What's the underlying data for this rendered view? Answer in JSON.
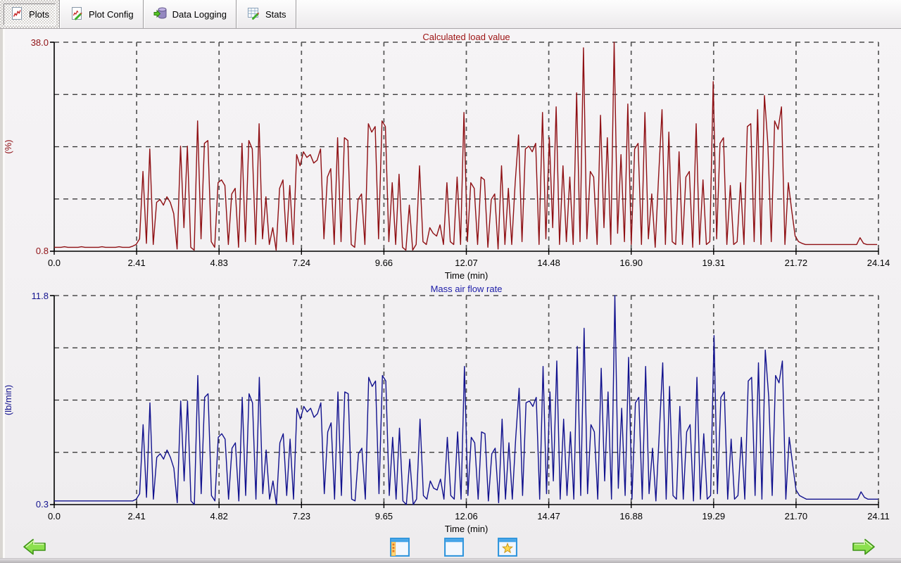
{
  "toolbar": {
    "tabs": [
      {
        "label": "Plots",
        "icon": "line-chart-page-icon",
        "active": true
      },
      {
        "label": "Plot Config",
        "icon": "chart-edit-icon",
        "active": false
      },
      {
        "label": "Data Logging",
        "icon": "database-arrow-icon",
        "active": false
      },
      {
        "label": "Stats",
        "icon": "stats-grid-edit-icon",
        "active": false
      }
    ]
  },
  "bottom_bar": {
    "prev_icon": "arrow-left-icon",
    "next_icon": "arrow-right-icon",
    "buttons": [
      {
        "icon": "panel-window-icon"
      },
      {
        "icon": "window-icon"
      },
      {
        "icon": "favorites-star-window-icon"
      }
    ]
  },
  "chart_data": [
    {
      "type": "line",
      "title": "Calculated load value",
      "title_color": "#9c1212",
      "line_color": "#8f1014",
      "ylabel": "(%)",
      "xlabel": "Time (min)",
      "y_tick_top": "38.0",
      "y_tick_bottom": "0.8",
      "ylim": [
        0.8,
        38.0
      ],
      "xlim": [
        0,
        24.14
      ],
      "x_ticks": [
        "0.0",
        "2.41",
        "4.83",
        "7.24",
        "9.66",
        "12.07",
        "14.48",
        "16.90",
        "19.31",
        "21.72",
        "24.14"
      ],
      "grid": true,
      "dt": 0.1,
      "values": [
        1.5,
        1.5,
        1.5,
        1.6,
        1.5,
        1.5,
        1.5,
        1.5,
        1.6,
        1.5,
        1.5,
        1.5,
        1.5,
        1.5,
        1.6,
        1.5,
        1.5,
        1.5,
        1.5,
        1.6,
        1.5,
        1.5,
        1.5,
        1.7,
        2.0,
        3.0,
        15.0,
        2.2,
        19.0,
        2.0,
        9.5,
        10.0,
        9.0,
        10.5,
        9.5,
        7.5,
        1.2,
        19.5,
        5.0,
        19.5,
        1.5,
        1.0,
        24.0,
        3.0,
        20.0,
        20.5,
        2.5,
        1.5,
        13.0,
        13.5,
        12.5,
        2.0,
        11.0,
        12.0,
        1.5,
        20.0,
        2.5,
        20.5,
        19.0,
        2.0,
        23.5,
        3.0,
        10.5,
        2.0,
        5.0,
        1.0,
        12.0,
        13.5,
        2.5,
        12.5,
        2.0,
        18.0,
        16.0,
        18.5,
        17.5,
        18.0,
        16.5,
        17.0,
        19.0,
        3.0,
        14.0,
        15.5,
        2.0,
        21.0,
        2.5,
        21.0,
        20.5,
        2.0,
        1.5,
        10.0,
        11.0,
        2.0,
        23.5,
        22.0,
        23.0,
        3.0,
        24.0,
        23.0,
        2.5,
        13.0,
        2.0,
        14.5,
        1.5,
        1.0,
        9.0,
        1.0,
        2.0,
        16.0,
        2.5,
        2.0,
        5.0,
        4.0,
        3.5,
        5.5,
        2.0,
        13.0,
        2.5,
        2.0,
        14.0,
        2.0,
        25.5,
        2.5,
        13.0,
        12.0,
        2.0,
        14.0,
        13.5,
        1.5,
        10.0,
        11.0,
        1.2,
        16.0,
        2.0,
        12.0,
        2.0,
        13.0,
        21.5,
        2.5,
        19.0,
        19.5,
        18.5,
        20.0,
        2.0,
        25.5,
        3.0,
        21.0,
        5.0,
        26.5,
        2.0,
        16.0,
        2.5,
        14.0,
        2.0,
        29.0,
        2.5,
        37.0,
        3.0,
        15.0,
        14.0,
        2.0,
        25.0,
        5.0,
        21.0,
        2.0,
        38.0,
        4.0,
        18.0,
        2.5,
        27.0,
        2.0,
        19.0,
        20.0,
        2.0,
        25.5,
        3.0,
        11.0,
        1.5,
        14.0,
        26.0,
        2.0,
        22.0,
        2.5,
        2.0,
        18.5,
        2.0,
        14.0,
        15.0,
        1.5,
        23.5,
        2.0,
        13.5,
        2.0,
        2.5,
        31.0,
        3.0,
        20.0,
        21.0,
        2.0,
        12.5,
        2.0,
        2.5,
        13.0,
        2.0,
        23.0,
        23.5,
        2.5,
        26.0,
        2.0,
        28.5,
        20.0,
        2.5,
        24.0,
        22.5,
        26.5,
        2.0,
        13.0,
        8.0,
        3.5,
        2.5,
        2.2,
        2.0,
        2.0,
        2.0,
        2.0,
        2.0,
        2.0,
        2.0,
        2.0,
        2.0,
        2.0,
        2.0,
        2.0,
        2.0,
        2.0,
        2.0,
        2.0,
        3.2,
        2.2,
        2.0,
        2.0,
        2.0,
        2.0
      ]
    },
    {
      "type": "line",
      "title": "Mass air flow rate",
      "title_color": "#1c1ca8",
      "line_color": "#12128e",
      "ylabel": "(lb/min)",
      "xlabel": "Time (min)",
      "y_tick_top": "11.8",
      "y_tick_bottom": "0.3",
      "ylim": [
        0.3,
        11.8
      ],
      "xlim": [
        0,
        24.11
      ],
      "x_ticks": [
        "0.0",
        "2.41",
        "4.82",
        "7.23",
        "9.65",
        "12.06",
        "14.47",
        "16.88",
        "19.29",
        "21.70",
        "24.11"
      ],
      "grid": true,
      "dt": 0.1,
      "values": [
        0.5,
        0.5,
        0.5,
        0.5,
        0.5,
        0.5,
        0.5,
        0.5,
        0.5,
        0.5,
        0.5,
        0.5,
        0.5,
        0.5,
        0.5,
        0.5,
        0.5,
        0.5,
        0.5,
        0.5,
        0.5,
        0.5,
        0.5,
        0.5,
        0.6,
        0.9,
        4.7,
        0.7,
        5.9,
        0.6,
        2.9,
        3.1,
        2.8,
        3.3,
        2.9,
        2.3,
        0.4,
        6.0,
        1.6,
        6.0,
        0.5,
        0.3,
        7.4,
        0.9,
        6.2,
        6.4,
        0.8,
        0.5,
        4.0,
        4.2,
        3.9,
        0.6,
        3.4,
        3.7,
        0.5,
        6.2,
        0.8,
        6.4,
        5.9,
        0.6,
        7.3,
        0.9,
        3.3,
        0.6,
        1.6,
        0.3,
        3.7,
        4.2,
        0.8,
        3.9,
        0.6,
        5.6,
        5.0,
        5.7,
        5.4,
        5.6,
        5.1,
        5.3,
        5.9,
        0.9,
        4.3,
        4.8,
        0.6,
        6.5,
        0.8,
        6.5,
        6.4,
        0.6,
        0.5,
        3.1,
        3.4,
        0.6,
        7.3,
        6.8,
        7.1,
        0.9,
        7.4,
        7.1,
        0.8,
        4.0,
        0.6,
        4.5,
        0.5,
        0.3,
        2.8,
        0.3,
        0.6,
        5.0,
        0.8,
        0.6,
        1.6,
        1.2,
        1.1,
        1.7,
        0.6,
        4.0,
        0.8,
        0.6,
        4.3,
        0.6,
        7.9,
        0.8,
        4.0,
        3.7,
        0.6,
        4.3,
        4.2,
        0.5,
        3.1,
        3.4,
        0.4,
        5.0,
        0.6,
        3.7,
        0.6,
        4.0,
        6.7,
        0.8,
        5.9,
        6.0,
        5.7,
        6.2,
        0.6,
        7.9,
        0.9,
        6.5,
        1.6,
        8.2,
        0.6,
        5.0,
        0.8,
        4.3,
        0.6,
        9.0,
        0.8,
        10.0,
        0.9,
        4.7,
        4.3,
        0.6,
        7.8,
        1.6,
        6.5,
        0.6,
        11.8,
        1.2,
        5.6,
        0.8,
        8.4,
        0.6,
        5.9,
        6.2,
        0.6,
        7.9,
        0.9,
        3.4,
        0.5,
        4.3,
        8.1,
        0.6,
        6.8,
        0.8,
        0.6,
        5.7,
        0.6,
        4.3,
        4.7,
        0.5,
        7.3,
        0.6,
        4.2,
        0.6,
        0.8,
        9.6,
        0.9,
        6.2,
        6.5,
        0.6,
        3.9,
        0.6,
        0.8,
        4.0,
        0.6,
        7.1,
        7.3,
        0.8,
        8.1,
        0.6,
        8.8,
        6.2,
        0.8,
        7.4,
        7.0,
        8.2,
        0.6,
        4.0,
        2.5,
        1.1,
        0.8,
        0.7,
        0.6,
        0.6,
        0.6,
        0.6,
        0.6,
        0.6,
        0.6,
        0.6,
        0.6,
        0.6,
        0.6,
        0.6,
        0.6,
        0.6,
        0.6,
        0.6,
        1.0,
        0.7,
        0.6,
        0.6,
        0.6,
        0.6
      ]
    }
  ]
}
